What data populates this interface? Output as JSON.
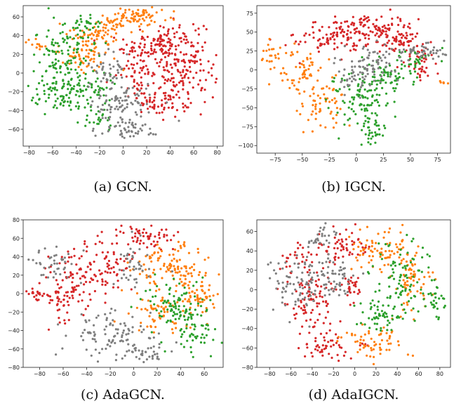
{
  "figure": {
    "colors": {
      "red": "#d62728",
      "orange": "#ff7f0e",
      "green": "#2ca02c",
      "gray": "#7f7f7f"
    }
  },
  "chart_data": [
    {
      "type": "scatter",
      "caption": "(a)  GCN.",
      "xlim": [
        -85,
        85
      ],
      "ylim": [
        -78,
        72
      ],
      "xticks": [
        -80,
        -60,
        -40,
        -20,
        0,
        20,
        40,
        60,
        80
      ],
      "yticks": [
        -60,
        -40,
        -20,
        0,
        20,
        40,
        60
      ],
      "grid": false,
      "series": [
        {
          "color": "red",
          "clusters": [
            {
              "x": 35,
              "y": 30,
              "sx": 17,
              "sy": 13,
              "n": 140
            },
            {
              "x": 50,
              "y": 0,
              "sx": 14,
              "sy": 16,
              "n": 120
            },
            {
              "x": 30,
              "y": -28,
              "sx": 12,
              "sy": 9,
              "n": 70
            },
            {
              "x": 12,
              "y": 8,
              "sx": 9,
              "sy": 14,
              "n": 50
            }
          ]
        },
        {
          "color": "orange",
          "clusters": [
            {
              "x": 8,
              "y": 58,
              "sx": 13,
              "sy": 7,
              "n": 90
            },
            {
              "x": -22,
              "y": 42,
              "sx": 11,
              "sy": 8,
              "n": 60
            },
            {
              "x": -35,
              "y": 20,
              "sx": 12,
              "sy": 8,
              "n": 55
            },
            {
              "x": -72,
              "y": 30,
              "sx": 5,
              "sy": 3,
              "n": 12
            }
          ]
        },
        {
          "color": "green",
          "clusters": [
            {
              "x": -52,
              "y": 20,
              "sx": 12,
              "sy": 14,
              "n": 80
            },
            {
              "x": -55,
              "y": -22,
              "sx": 12,
              "sy": 11,
              "n": 80
            },
            {
              "x": -28,
              "y": -20,
              "sx": 11,
              "sy": 12,
              "n": 60
            },
            {
              "x": -35,
              "y": 48,
              "sx": 9,
              "sy": 8,
              "n": 45
            },
            {
              "x": -22,
              "y": -52,
              "sx": 6,
              "sy": 5,
              "n": 20
            }
          ]
        },
        {
          "color": "gray",
          "clusters": [
            {
              "x": 0,
              "y": -32,
              "sx": 14,
              "sy": 11,
              "n": 90
            },
            {
              "x": 3,
              "y": -60,
              "sx": 12,
              "sy": 5,
              "n": 50
            },
            {
              "x": -12,
              "y": 5,
              "sx": 9,
              "sy": 10,
              "n": 40
            }
          ]
        }
      ]
    },
    {
      "type": "scatter",
      "caption": "(b)  IGCN.",
      "xlim": [
        -92,
        87
      ],
      "ylim": [
        -110,
        85
      ],
      "xticks": [
        -75,
        -50,
        -25,
        0,
        25,
        50,
        75
      ],
      "yticks": [
        -100,
        -75,
        -50,
        -25,
        0,
        25,
        50,
        75
      ],
      "grid": false,
      "series": [
        {
          "color": "red",
          "clusters": [
            {
              "x": -20,
              "y": 45,
              "sx": 18,
              "sy": 12,
              "n": 100
            },
            {
              "x": 15,
              "y": 55,
              "sx": 15,
              "sy": 10,
              "n": 80
            },
            {
              "x": 40,
              "y": 40,
              "sx": 14,
              "sy": 10,
              "n": 70
            },
            {
              "x": 60,
              "y": 5,
              "sx": 10,
              "sy": 12,
              "n": 35
            }
          ]
        },
        {
          "color": "orange",
          "clusters": [
            {
              "x": -55,
              "y": 0,
              "sx": 12,
              "sy": 14,
              "n": 60
            },
            {
              "x": -30,
              "y": -45,
              "sx": 12,
              "sy": 15,
              "n": 60
            },
            {
              "x": -78,
              "y": 22,
              "sx": 5,
              "sy": 6,
              "n": 18
            },
            {
              "x": 80,
              "y": -15,
              "sx": 2,
              "sy": 3,
              "n": 6
            }
          ]
        },
        {
          "color": "green",
          "clusters": [
            {
              "x": 0,
              "y": -40,
              "sx": 14,
              "sy": 16,
              "n": 90
            },
            {
              "x": 25,
              "y": -10,
              "sx": 15,
              "sy": 11,
              "n": 70
            },
            {
              "x": 15,
              "y": -85,
              "sx": 8,
              "sy": 9,
              "n": 30
            },
            {
              "x": 55,
              "y": 12,
              "sx": 9,
              "sy": 8,
              "n": 25
            }
          ]
        },
        {
          "color": "gray",
          "clusters": [
            {
              "x": 15,
              "y": 10,
              "sx": 14,
              "sy": 12,
              "n": 70
            },
            {
              "x": 60,
              "y": 25,
              "sx": 12,
              "sy": 6,
              "n": 45
            },
            {
              "x": -5,
              "y": -10,
              "sx": 8,
              "sy": 10,
              "n": 30
            }
          ]
        }
      ]
    },
    {
      "type": "scatter",
      "caption": "(c)  AdaGCN.",
      "xlim": [
        -94,
        76
      ],
      "ylim": [
        -80,
        80
      ],
      "xticks": [
        -80,
        -60,
        -40,
        -20,
        0,
        20,
        40,
        60
      ],
      "yticks": [
        -80,
        -60,
        -40,
        -20,
        0,
        20,
        40,
        60,
        80
      ],
      "grid": false,
      "series": [
        {
          "color": "red",
          "clusters": [
            {
              "x": -55,
              "y": 5,
              "sx": 14,
              "sy": 20,
              "n": 110
            },
            {
              "x": -25,
              "y": 30,
              "sx": 12,
              "sy": 14,
              "n": 70
            },
            {
              "x": 10,
              "y": 60,
              "sx": 14,
              "sy": 7,
              "n": 60
            },
            {
              "x": -82,
              "y": 0,
              "sx": 4,
              "sy": 3,
              "n": 15
            }
          ]
        },
        {
          "color": "orange",
          "clusters": [
            {
              "x": 30,
              "y": 30,
              "sx": 15,
              "sy": 13,
              "n": 100
            },
            {
              "x": 55,
              "y": 0,
              "sx": 8,
              "sy": 15,
              "n": 60
            },
            {
              "x": 20,
              "y": -20,
              "sx": 14,
              "sy": 12,
              "n": 60
            }
          ]
        },
        {
          "color": "green",
          "clusters": [
            {
              "x": 35,
              "y": -15,
              "sx": 13,
              "sy": 14,
              "n": 100
            },
            {
              "x": 50,
              "y": -45,
              "sx": 10,
              "sy": 10,
              "n": 40
            }
          ]
        },
        {
          "color": "gray",
          "clusters": [
            {
              "x": -20,
              "y": -45,
              "sx": 20,
              "sy": 12,
              "n": 100
            },
            {
              "x": -65,
              "y": 30,
              "sx": 10,
              "sy": 12,
              "n": 40
            },
            {
              "x": 0,
              "y": 30,
              "sx": 8,
              "sy": 14,
              "n": 40
            },
            {
              "x": 10,
              "y": -65,
              "sx": 10,
              "sy": 6,
              "n": 30
            }
          ]
        }
      ]
    },
    {
      "type": "scatter",
      "caption": "(d)  AdaIGCN.",
      "xlim": [
        -92,
        90
      ],
      "ylim": [
        -80,
        72
      ],
      "xticks": [
        -80,
        -60,
        -40,
        -20,
        0,
        20,
        40,
        60,
        80
      ],
      "yticks": [
        -80,
        -60,
        -40,
        -20,
        0,
        20,
        40,
        60
      ],
      "grid": false,
      "series": [
        {
          "color": "red",
          "clusters": [
            {
              "x": -40,
              "y": -15,
              "sx": 14,
              "sy": 16,
              "n": 90
            },
            {
              "x": -10,
              "y": 45,
              "sx": 12,
              "sy": 10,
              "n": 60
            },
            {
              "x": -25,
              "y": -60,
              "sx": 14,
              "sy": 6,
              "n": 50
            },
            {
              "x": -55,
              "y": 30,
              "sx": 8,
              "sy": 10,
              "n": 30
            },
            {
              "x": 0,
              "y": 5,
              "sx": 5,
              "sy": 7,
              "n": 20
            }
          ]
        },
        {
          "color": "orange",
          "clusters": [
            {
              "x": 25,
              "y": 40,
              "sx": 15,
              "sy": 12,
              "n": 80
            },
            {
              "x": 55,
              "y": 5,
              "sx": 9,
              "sy": 18,
              "n": 60
            },
            {
              "x": 20,
              "y": -55,
              "sx": 15,
              "sy": 8,
              "n": 60
            }
          ]
        },
        {
          "color": "green",
          "clusters": [
            {
              "x": 40,
              "y": 10,
              "sx": 12,
              "sy": 22,
              "n": 90
            },
            {
              "x": 25,
              "y": -30,
              "sx": 12,
              "sy": 10,
              "n": 50
            },
            {
              "x": 75,
              "y": -10,
              "sx": 5,
              "sy": 14,
              "n": 30
            }
          ]
        },
        {
          "color": "gray",
          "clusters": [
            {
              "x": -55,
              "y": 10,
              "sx": 14,
              "sy": 18,
              "n": 90
            },
            {
              "x": -20,
              "y": 10,
              "sx": 10,
              "sy": 10,
              "n": 50
            },
            {
              "x": -30,
              "y": 55,
              "sx": 8,
              "sy": 6,
              "n": 25
            }
          ]
        }
      ]
    }
  ]
}
